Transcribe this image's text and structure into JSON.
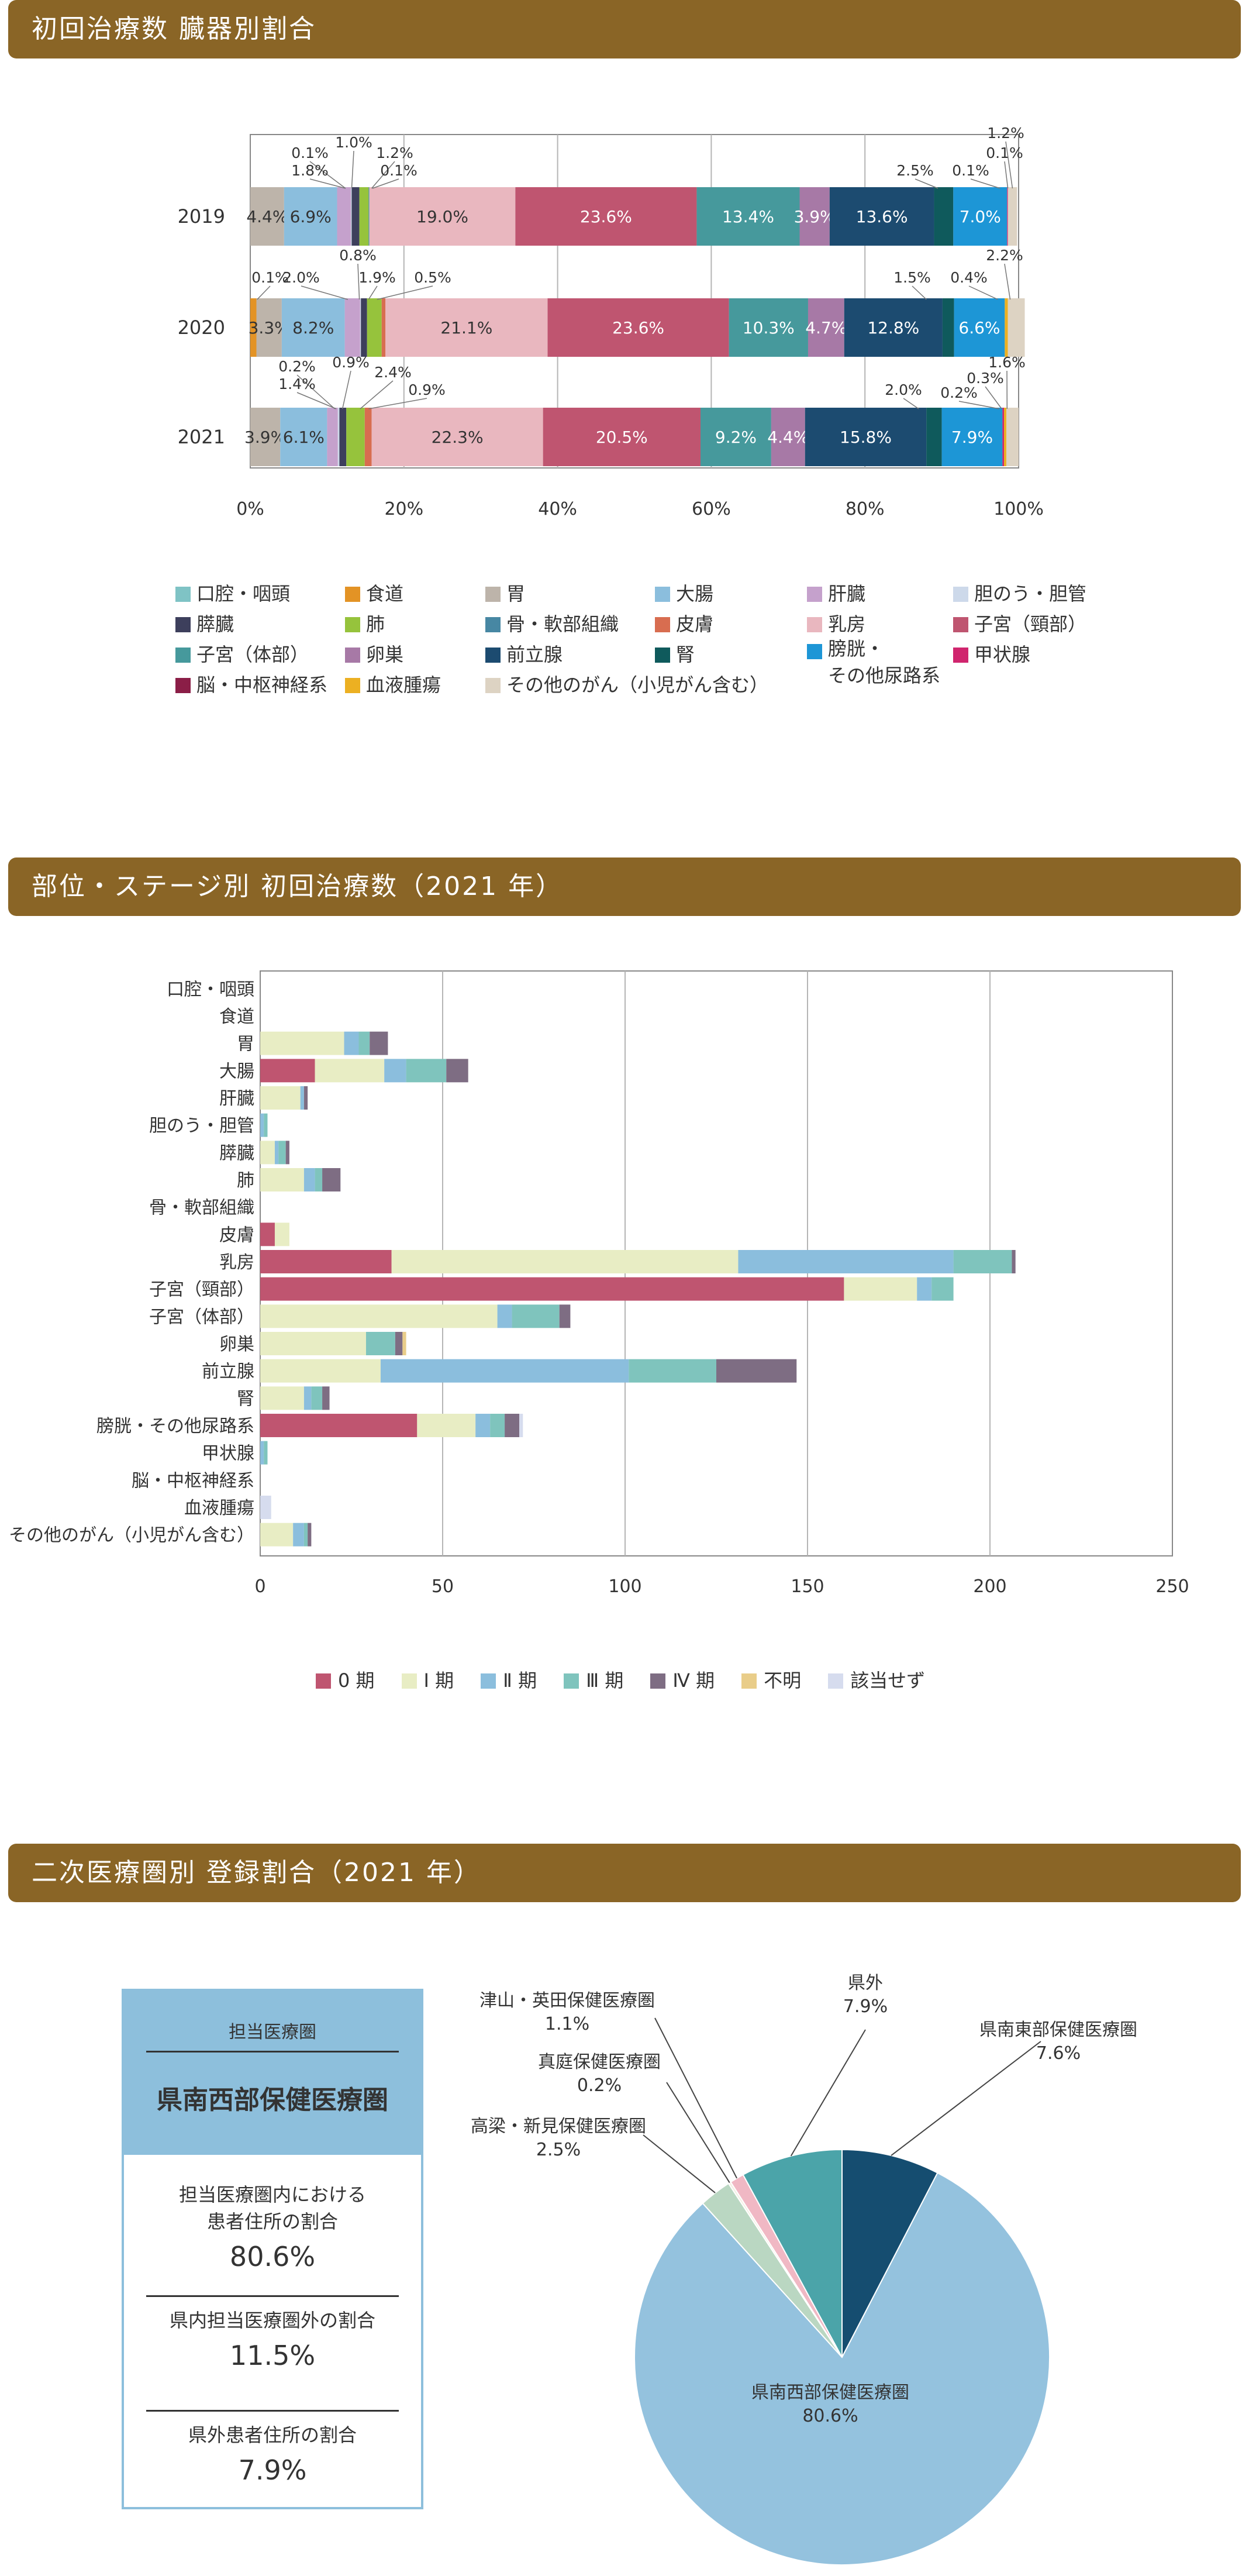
{
  "section1": {
    "title": "初回治療数 臓器別割合"
  },
  "section2": {
    "title": "部位・ステージ別 初回治療数（2021 年）"
  },
  "section3": {
    "title": "二次医療圏別 登録割合（2021 年）"
  },
  "chart_data": [
    {
      "type": "bar",
      "orientation": "horizontal",
      "stacked": true,
      "percent": true,
      "title": "初回治療数 臓器別割合",
      "categories": [
        "2019",
        "2020",
        "2021"
      ],
      "x_ticks": [
        "0%",
        "20%",
        "40%",
        "60%",
        "80%",
        "100%"
      ],
      "xlim": [
        0,
        100
      ],
      "grid": true,
      "legend_placement": "bottom",
      "series": [
        {
          "name": "口腔・咽頭",
          "color": "#7fc3c5",
          "values": [
            0.0,
            0.0,
            0.0
          ]
        },
        {
          "name": "食道",
          "color": "#e39325",
          "values": [
            0.0,
            0.8,
            0.0
          ]
        },
        {
          "name": "胃",
          "color": "#bdb4aa",
          "values": [
            4.4,
            3.3,
            3.9
          ]
        },
        {
          "name": "大腸",
          "color": "#8bbedd",
          "values": [
            6.9,
            8.2,
            6.1
          ]
        },
        {
          "name": "肝臓",
          "color": "#c5a1cc",
          "values": [
            1.8,
            2.0,
            1.4
          ]
        },
        {
          "name": "胆のう・胆管",
          "color": "#cdd9ea",
          "values": [
            0.1,
            0.1,
            0.2
          ]
        },
        {
          "name": "膵臓",
          "color": "#3d3f5c",
          "values": [
            1.0,
            0.8,
            0.9
          ]
        },
        {
          "name": "肺",
          "color": "#96c33c",
          "values": [
            1.2,
            1.9,
            2.4
          ]
        },
        {
          "name": "骨・軟部組織",
          "color": "#4787a3",
          "values": [
            0.1,
            0.0,
            0.0
          ]
        },
        {
          "name": "皮膚",
          "color": "#d86d50",
          "values": [
            0.0,
            0.5,
            0.9
          ]
        },
        {
          "name": "乳房",
          "color": "#e9b7bf",
          "values": [
            19.0,
            21.1,
            22.3
          ]
        },
        {
          "name": "子宮（頸部）",
          "color": "#bf5570",
          "values": [
            23.6,
            23.6,
            20.5
          ]
        },
        {
          "name": "子宮（体部）",
          "color": "#46999c",
          "values": [
            13.4,
            10.3,
            9.2
          ]
        },
        {
          "name": "卵巣",
          "color": "#a779a6",
          "values": [
            3.9,
            4.7,
            4.4
          ]
        },
        {
          "name": "前立腺",
          "color": "#1c4b70",
          "values": [
            13.6,
            12.8,
            15.8
          ]
        },
        {
          "name": "腎",
          "color": "#0f5a5c",
          "values": [
            2.5,
            1.5,
            2.0
          ]
        },
        {
          "name": "膀胱・その他尿路系",
          "color": "#1d96d6",
          "values": [
            7.0,
            6.6,
            7.9
          ]
        },
        {
          "name": "甲状腺",
          "color": "#d0256e",
          "values": [
            0.1,
            0.0,
            0.2
          ]
        },
        {
          "name": "脳・中枢神経系",
          "color": "#8b1e47",
          "values": [
            0.0,
            0.0,
            0.0
          ]
        },
        {
          "name": "血液腫瘍",
          "color": "#ecb022",
          "values": [
            0.0,
            0.4,
            0.3
          ]
        },
        {
          "name": "その他のがん（小児がん含む）",
          "color": "#ddd3c3",
          "values": [
            1.2,
            2.2,
            1.6
          ]
        }
      ],
      "outside_labels": [
        [
          "0.1%",
          "1.8%",
          "1.0%",
          "1.2%",
          "0.1%",
          "2.5%",
          "0.1%",
          "0.1%",
          "1.2%"
        ],
        [
          "0.1%",
          "2.0%",
          "0.8%",
          "1.9%",
          "0.5%",
          "1.5%",
          "0.4%",
          "2.2%"
        ],
        [
          "0.2%",
          "1.4%",
          "0.9%",
          "2.4%",
          "0.9%",
          "2.0%",
          "0.2%",
          "0.3%",
          "1.6%"
        ]
      ]
    },
    {
      "type": "bar",
      "orientation": "horizontal",
      "stacked": true,
      "title": "部位・ステージ別 初回治療数（2021 年）",
      "categories": [
        "口腔・咽頭",
        "食道",
        "胃",
        "大腸",
        "肝臓",
        "胆のう・胆管",
        "膵臓",
        "肺",
        "骨・軟部組織",
        "皮膚",
        "乳房",
        "子宮（頸部）",
        "子宮（体部）",
        "卵巣",
        "前立腺",
        "腎",
        "膀胱・その他尿路系",
        "甲状腺",
        "脳・中枢神経系",
        "血液腫瘍",
        "その他のがん（小児がん含む）"
      ],
      "x_ticks": [
        "0",
        "50",
        "100",
        "150",
        "200",
        "250"
      ],
      "xlim": [
        0,
        250
      ],
      "grid": true,
      "legend_placement": "bottom",
      "series": [
        {
          "name": "0 期",
          "color": "#bf5570",
          "values": [
            0,
            0,
            0,
            15,
            0,
            0,
            0,
            0,
            0,
            4,
            36,
            160,
            0,
            0,
            0,
            0,
            43,
            0,
            0,
            0,
            0
          ]
        },
        {
          "name": "Ⅰ 期",
          "color": "#e8edc4",
          "values": [
            0,
            0,
            23,
            19,
            11,
            0,
            4,
            12,
            0,
            4,
            95,
            20,
            65,
            29,
            33,
            12,
            16,
            0,
            0,
            0,
            9
          ]
        },
        {
          "name": "Ⅱ 期",
          "color": "#8bbedd",
          "values": [
            0,
            0,
            4,
            6,
            1,
            1,
            1,
            3,
            0,
            0,
            59,
            4,
            4,
            0,
            68,
            2,
            4,
            1,
            0,
            0,
            3
          ]
        },
        {
          "name": "Ⅲ 期",
          "color": "#7fc4bd",
          "values": [
            0,
            0,
            3,
            11,
            0,
            1,
            2,
            2,
            0,
            0,
            16,
            6,
            13,
            8,
            24,
            3,
            4,
            1,
            0,
            0,
            1
          ]
        },
        {
          "name": "Ⅳ 期",
          "color": "#7e6d83",
          "values": [
            0,
            0,
            5,
            6,
            1,
            0,
            1,
            5,
            0,
            0,
            1,
            0,
            3,
            2,
            22,
            2,
            4,
            0,
            0,
            0,
            1
          ]
        },
        {
          "name": "不明",
          "color": "#e9cd89",
          "values": [
            0,
            0,
            0,
            0,
            0,
            0,
            0,
            0,
            0,
            0,
            0,
            0,
            0,
            1,
            0,
            0,
            0,
            0,
            0,
            0,
            0
          ]
        },
        {
          "name": "該当せず",
          "color": "#d6dcee",
          "values": [
            0,
            0,
            0,
            0,
            0,
            0,
            0,
            0,
            0,
            0,
            0,
            0,
            0,
            0,
            0,
            0,
            1,
            0,
            0,
            3,
            0
          ]
        }
      ]
    },
    {
      "type": "pie",
      "title": "二次医療圏別 登録割合（2021 年）",
      "slices": [
        {
          "name": "県南西部保健医療圏",
          "value": 80.6,
          "label": "80.6%",
          "color": "#94c2de"
        },
        {
          "name": "高梁・新見保健医療圏",
          "value": 2.5,
          "label": "2.5%",
          "color": "#bad7c2"
        },
        {
          "name": "真庭保健医療圏",
          "value": 0.2,
          "label": "0.2%",
          "color": "#f4f0e4"
        },
        {
          "name": "津山・英田保健医療圏",
          "value": 1.1,
          "label": "1.1%",
          "color": "#f0b8c4"
        },
        {
          "name": "県外",
          "value": 7.9,
          "label": "7.9%",
          "color": "#4ba4a9"
        },
        {
          "name": "県南東部保健医療圏",
          "value": 7.6,
          "label": "7.6%",
          "color": "#154d70"
        }
      ]
    }
  ],
  "info_card": {
    "header_label": "担当医療圏",
    "header_name": "県南西部保健医療圏",
    "stats": [
      {
        "text_line1": "担当医療圏内における",
        "text_line2": "患者住所の割合",
        "value": "80.6%"
      },
      {
        "text_line1": "県内担当医療圏外の割合",
        "text_line2": "",
        "value": "11.5%"
      },
      {
        "text_line1": "県外患者住所の割合",
        "text_line2": "",
        "value": "7.9%"
      }
    ]
  }
}
